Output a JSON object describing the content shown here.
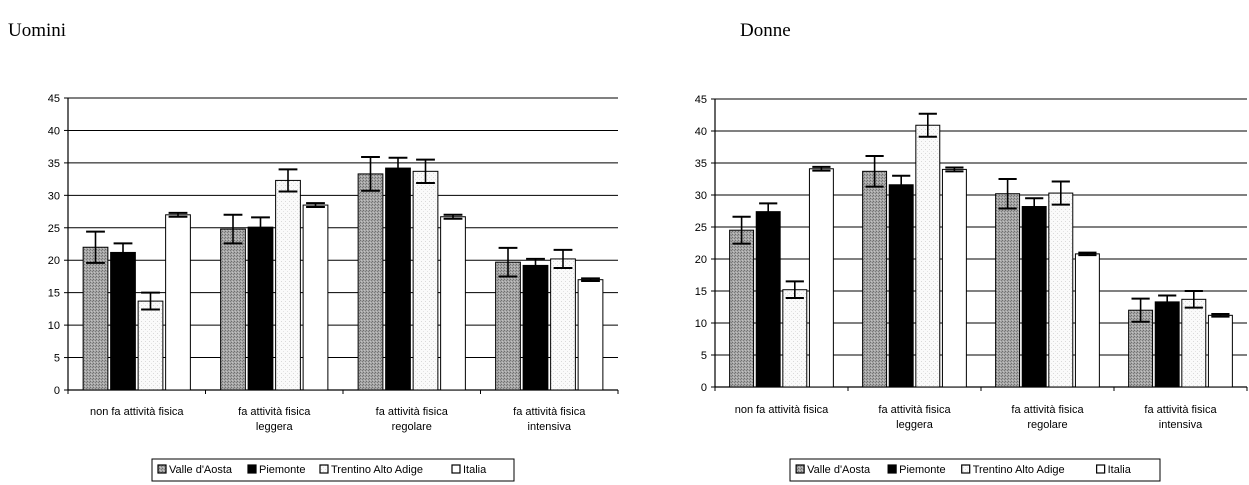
{
  "titles": [
    "Uomini",
    "Donne"
  ],
  "legend": [
    "Valle d'Aosta",
    "Piemonte",
    "Trentino Alto Adige",
    "Italia"
  ],
  "colors": {
    "Valle d'Aosta": "#8f8f8f",
    "Piemonte": "#000000",
    "Trentino Alto Adige": "#f3f3f3",
    "Italia": "#ffffff"
  },
  "chart_data": [
    {
      "type": "bar",
      "title": "Uomini",
      "categories": [
        [
          "non fa attività fisica"
        ],
        [
          "fa attività fisica",
          "leggera"
        ],
        [
          "fa attività fisica",
          "regolare"
        ],
        [
          "fa attività fisica",
          "intensiva"
        ]
      ],
      "ylim": [
        0,
        45
      ],
      "yticks": [
        0,
        5,
        10,
        15,
        20,
        25,
        30,
        35,
        40,
        45
      ],
      "grid": true,
      "legend_position": "bottom",
      "series": [
        {
          "name": "Valle d'Aosta",
          "values": [
            22.0,
            24.8,
            33.3,
            19.7
          ],
          "err": [
            2.4,
            2.2,
            2.6,
            2.2
          ]
        },
        {
          "name": "Piemonte",
          "values": [
            21.2,
            25.1,
            34.2,
            19.2
          ],
          "err": [
            1.4,
            1.5,
            1.6,
            1.0
          ]
        },
        {
          "name": "Trentino Alto Adige",
          "values": [
            13.7,
            32.3,
            33.7,
            20.2
          ],
          "err": [
            1.3,
            1.7,
            1.8,
            1.4
          ]
        },
        {
          "name": "Italia",
          "values": [
            27.0,
            28.5,
            26.7,
            17.0
          ],
          "err": [
            0.3,
            0.3,
            0.3,
            0.2
          ]
        }
      ]
    },
    {
      "type": "bar",
      "title": "Donne",
      "categories": [
        [
          "non fa attività fisica"
        ],
        [
          "fa attività fisica",
          "leggera"
        ],
        [
          "fa attività fisica",
          "regolare"
        ],
        [
          "fa attività fisica",
          "intensiva"
        ]
      ],
      "ylim": [
        0,
        45
      ],
      "yticks": [
        0,
        5,
        10,
        15,
        20,
        25,
        30,
        35,
        40,
        45
      ],
      "grid": true,
      "legend_position": "bottom",
      "series": [
        {
          "name": "Valle d'Aosta",
          "values": [
            24.5,
            33.7,
            30.2,
            12.0
          ],
          "err": [
            2.1,
            2.4,
            2.3,
            1.8
          ]
        },
        {
          "name": "Piemonte",
          "values": [
            27.4,
            31.6,
            28.2,
            13.3
          ],
          "err": [
            1.3,
            1.4,
            1.3,
            1.0
          ]
        },
        {
          "name": "Trentino Alto Adige",
          "values": [
            15.2,
            40.9,
            30.3,
            13.7
          ],
          "err": [
            1.3,
            1.8,
            1.8,
            1.3
          ]
        },
        {
          "name": "Italia",
          "values": [
            34.1,
            34.0,
            20.8,
            11.2
          ],
          "err": [
            0.3,
            0.3,
            0.2,
            0.2
          ]
        }
      ]
    }
  ]
}
